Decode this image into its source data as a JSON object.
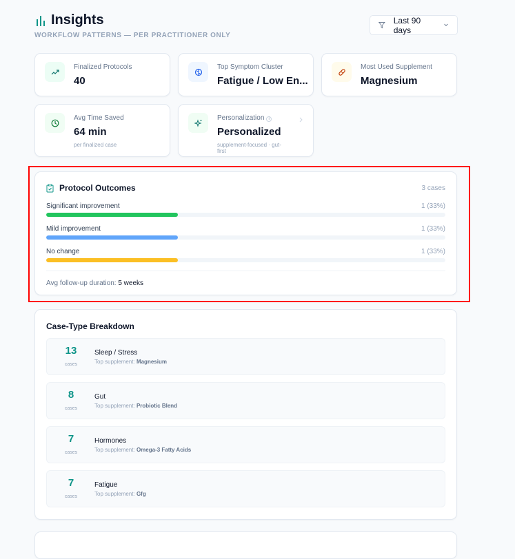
{
  "header": {
    "title": "Insights",
    "subtitle": "WORKFLOW PATTERNS — PER PRACTITIONER ONLY",
    "filter": "Last 90 days"
  },
  "stats": [
    {
      "label": "Finalized Protocols",
      "value": "40",
      "icon": "trending-up-icon",
      "bg": "#ecfdf5",
      "color": "#0f766e"
    },
    {
      "label": "Top Symptom Cluster",
      "value": "Fatigue / Low En...",
      "icon": "brain-icon",
      "bg": "#eff6ff",
      "color": "#2563eb"
    },
    {
      "label": "Most Used Supplement",
      "value": "Magnesium",
      "icon": "pill-icon",
      "bg": "#fffbeb",
      "color": "#c2410c"
    },
    {
      "label": "Avg Time Saved",
      "value": "64 min",
      "sub": "per finalized case",
      "icon": "clock-icon",
      "bg": "#f0fdf4",
      "color": "#15803d"
    },
    {
      "label": "Personalization",
      "value": "Personalized",
      "sub": "supplement-focused · gut-first",
      "icon": "sparkles-icon",
      "bg": "#f0fdf4",
      "color": "#0f766e"
    }
  ],
  "outcomes": {
    "title": "Protocol Outcomes",
    "count": "3 cases",
    "items": [
      {
        "label": "Significant improvement",
        "value": "1 (33%)",
        "percent": 33,
        "color": "#22c55e"
      },
      {
        "label": "Mild improvement",
        "value": "1 (33%)",
        "percent": 33,
        "color": "#60a5fa"
      },
      {
        "label": "No change",
        "value": "1 (33%)",
        "percent": 33,
        "color": "#fbbf24"
      }
    ],
    "footer_label": "Avg follow-up duration:",
    "footer_value": "5 weeks"
  },
  "breakdown": {
    "title": "Case-Type Breakdown",
    "unit": "cases",
    "prefix": "Top supplement:",
    "items": [
      {
        "count": "13",
        "name": "Sleep / Stress",
        "supplement": "Magnesium"
      },
      {
        "count": "8",
        "name": "Gut",
        "supplement": "Probiotic Blend"
      },
      {
        "count": "7",
        "name": "Hormones",
        "supplement": "Omega-3 Fatty Acids"
      },
      {
        "count": "7",
        "name": "Fatigue",
        "supplement": "Gfg"
      }
    ]
  }
}
